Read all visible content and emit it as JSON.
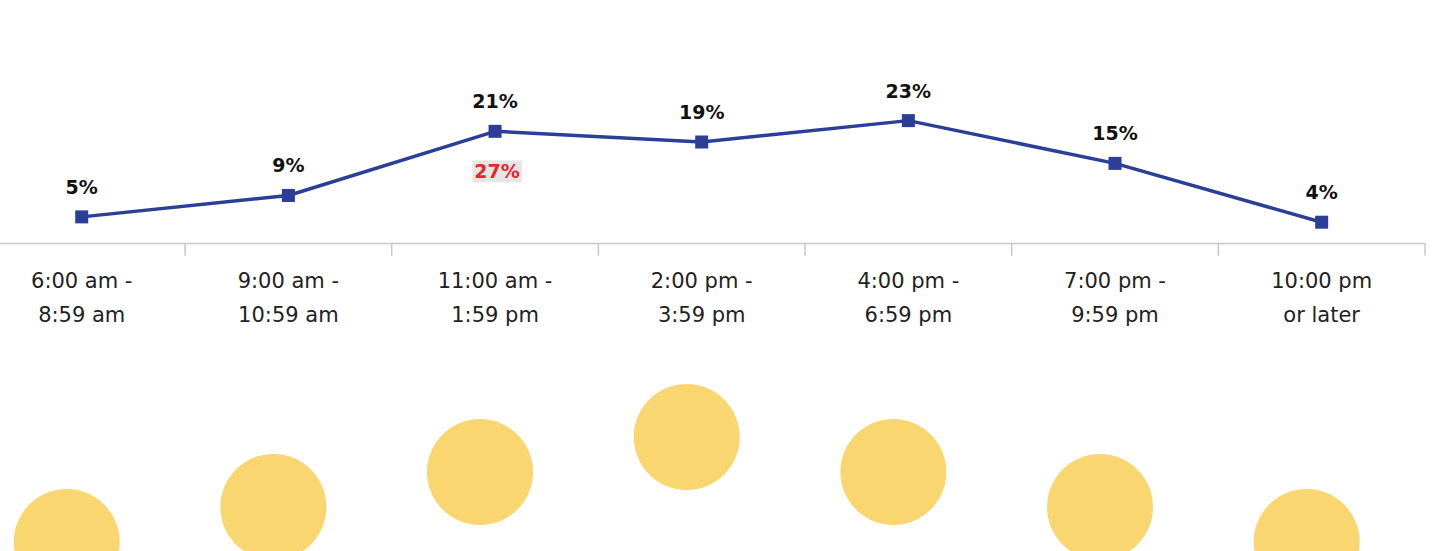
{
  "chart_data": {
    "type": "line",
    "categories": [
      "6:00 am -\n8:59 am",
      "9:00 am -\n10:59 am",
      "11:00 am -\n1:59 pm",
      "2:00 pm -\n3:59 pm",
      "4:00 pm -\n6:59 pm",
      "7:00 pm -\n9:59 pm",
      "10:00 pm\nor later"
    ],
    "values": [
      5,
      9,
      21,
      19,
      23,
      15,
      4
    ],
    "value_labels": [
      "5%",
      "9%",
      "21%",
      "19%",
      "23%",
      "15%",
      "4%"
    ],
    "color": "#2b3f99",
    "marker": "square",
    "data_labels": true,
    "tick_labels": "x",
    "ylim": [
      0,
      45
    ],
    "annotations": [
      {
        "text": "27%",
        "category": "11:00 am -\n1:59 pm",
        "color": "#e8262b"
      }
    ]
  }
}
